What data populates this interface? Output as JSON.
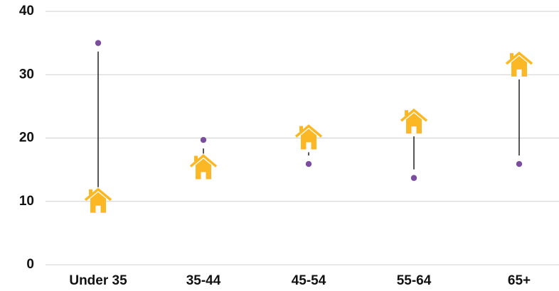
{
  "chart_data": {
    "type": "dot-house",
    "categories": [
      "Under 35",
      "35-44",
      "45-54",
      "55-64",
      "65+"
    ],
    "series": [
      {
        "color": "#fbb824",
        "marker": "house",
        "values": [
          10,
          15.3,
          20,
          22.5,
          31.5
        ]
      },
      {
        "color": "#7a4e9c",
        "marker": "dot",
        "values": [
          35,
          19.7,
          15.9,
          13.7,
          15.9
        ]
      }
    ],
    "ylim": [
      0,
      40
    ],
    "yticks": [
      0,
      10,
      20,
      30,
      40
    ],
    "grid": true
  }
}
